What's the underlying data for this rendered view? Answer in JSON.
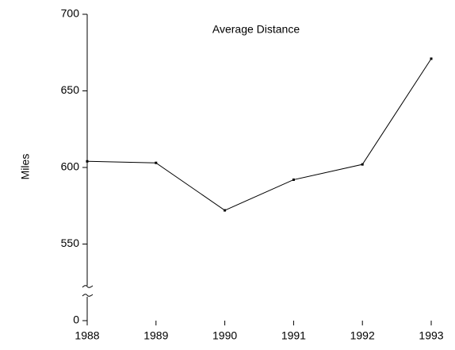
{
  "chart_data": {
    "type": "line",
    "title": "Average Distance",
    "ylabel": "Miles",
    "categories": [
      "1988",
      "1989",
      "1990",
      "1991",
      "1992",
      "1993"
    ],
    "series": [
      {
        "name": "Average Distance",
        "color": "#000000",
        "values": [
          604,
          603,
          572,
          592,
          602,
          671
        ]
      }
    ],
    "ylim": [
      0,
      700
    ],
    "yticks": [
      0,
      550,
      600,
      650,
      700
    ],
    "axis_break": true,
    "grid": false
  }
}
